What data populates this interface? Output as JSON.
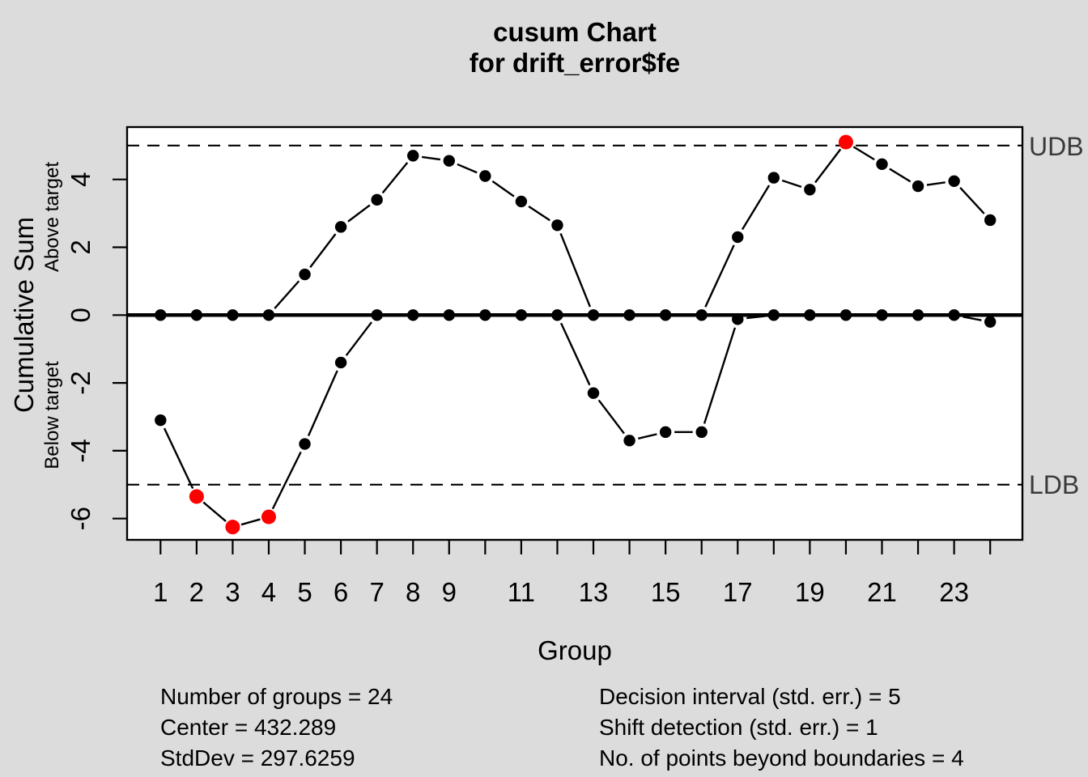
{
  "title": {
    "line1": "cusum Chart",
    "line2": "for drift_error$fe"
  },
  "axes": {
    "x_label": "Group",
    "y_label": "Cumulative Sum",
    "y_upper_region_label": "Above target",
    "y_lower_region_label": "Below target",
    "y_ticks": [
      {
        "value": 4,
        "label": "4"
      },
      {
        "value": 2,
        "label": "2"
      },
      {
        "value": 0,
        "label": "0"
      },
      {
        "value": -2,
        "label": "-2"
      },
      {
        "value": -4,
        "label": "-4"
      },
      {
        "value": -6,
        "label": "-6"
      }
    ],
    "x_tick_labels": [
      "1",
      "2",
      "3",
      "4",
      "5",
      "6",
      "7",
      "8",
      "9",
      "",
      "11",
      "",
      "13",
      "",
      "15",
      "",
      "17",
      "",
      "19",
      "",
      "21",
      "",
      "23",
      ""
    ]
  },
  "boundaries": {
    "udb_label": "UDB",
    "ldb_label": "LDB"
  },
  "stats": {
    "left": [
      "Number of groups = 24",
      "Center = 432.289",
      "StdDev = 297.6259"
    ],
    "right": [
      "Decision interval (std. err.) = 5",
      "Shift detection (std. err.) = 1",
      "No. of points beyond boundaries = 4"
    ]
  },
  "chart_data": {
    "type": "line",
    "title": "cusum Chart for drift_error$fe",
    "xlabel": "Group",
    "ylabel": "Cumulative Sum",
    "x": [
      1,
      2,
      3,
      4,
      5,
      6,
      7,
      8,
      9,
      10,
      11,
      12,
      13,
      14,
      15,
      16,
      17,
      18,
      19,
      20,
      21,
      22,
      23,
      24
    ],
    "series": [
      {
        "name": "above_target",
        "values": [
          0,
          0,
          0,
          0,
          1.2,
          2.6,
          3.4,
          4.7,
          4.55,
          4.1,
          3.35,
          2.65,
          0,
          0,
          0,
          0,
          2.3,
          4.05,
          3.7,
          5.1,
          4.45,
          3.8,
          3.95,
          2.8
        ]
      },
      {
        "name": "below_target",
        "values": [
          -3.1,
          -5.35,
          -6.25,
          -5.95,
          -3.8,
          -1.4,
          0,
          0,
          0,
          0,
          0,
          0,
          -2.3,
          -3.7,
          -3.45,
          -3.45,
          -0.12,
          0,
          0,
          0,
          0,
          0,
          0,
          -0.2
        ]
      }
    ],
    "center": 0,
    "udb": 5,
    "ldb": -5,
    "ylim": [
      -6.64,
      5.55
    ],
    "n_groups": 24,
    "center_statistic": 432.289,
    "std_dev": 297.6259,
    "decision_interval_std_err": 5,
    "shift_detection_std_err": 1,
    "points_beyond_boundaries": 4,
    "beyond_boundaries": [
      {
        "series": "below_target",
        "group": 2
      },
      {
        "series": "below_target",
        "group": 3
      },
      {
        "series": "below_target",
        "group": 4
      },
      {
        "series": "above_target",
        "group": 20
      }
    ],
    "grid": false,
    "legend": false
  },
  "colors": {
    "background": "#dcdcdc",
    "plot_background": "#ffffff",
    "line_and_points": "#000000",
    "beyond_boundary_point": "#ff0000",
    "boundary_label": "#3a3a3a",
    "border": "#000000"
  }
}
